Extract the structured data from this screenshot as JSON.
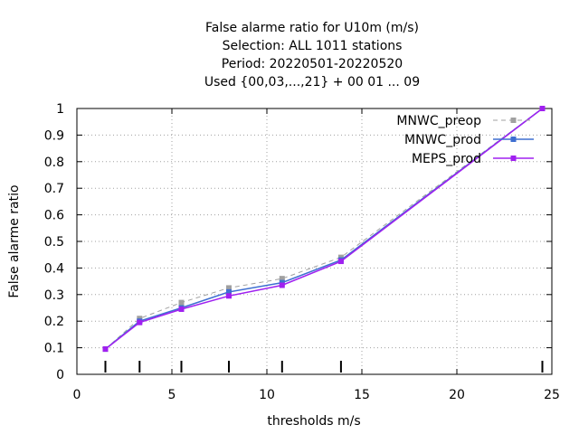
{
  "chart_data": {
    "type": "line",
    "title_lines": [
      "False alarme ratio  for U10m (m/s)",
      "Selection: ALL   1011 stations",
      "Period: 20220501-20220520",
      "Used {00,03,...,21} + 00 01 ... 09"
    ],
    "xlabel": "thresholds m/s",
    "ylabel": "False alarme ratio",
    "xlim": [
      0,
      25
    ],
    "ylim": [
      0,
      1
    ],
    "xticks": [
      0,
      5,
      10,
      15,
      20,
      25
    ],
    "yticks": [
      0,
      0.1,
      0.2,
      0.3,
      0.4,
      0.5,
      0.6,
      0.7,
      0.8,
      0.9,
      1
    ],
    "ytick_labels": [
      "0",
      "0.1",
      "0.2",
      "0.3",
      "0.4",
      "0.5",
      "0.6",
      "0.7",
      "0.8",
      "0.9",
      "1"
    ],
    "grid": true,
    "legend_position": "top-right",
    "threshold_marks": [
      1.5,
      3.3,
      5.5,
      8.0,
      10.8,
      13.9,
      24.5
    ],
    "series": [
      {
        "name": "MNWC_preop",
        "color": "#a0a0a0",
        "dashed": true,
        "x": [
          1.5,
          3.3,
          5.5,
          8.0,
          10.8,
          13.9,
          24.5
        ],
        "y": [
          0.095,
          0.21,
          0.27,
          0.325,
          0.36,
          0.44,
          1.0
        ]
      },
      {
        "name": "MNWC_prod",
        "color": "#3e6fd1",
        "dashed": false,
        "x": [
          1.5,
          3.3,
          5.5,
          8.0,
          10.8,
          13.9,
          24.5
        ],
        "y": [
          0.095,
          0.2,
          0.25,
          0.31,
          0.345,
          0.43,
          1.0
        ]
      },
      {
        "name": "MEPS_prod",
        "color": "#a020f0",
        "dashed": false,
        "x": [
          1.5,
          3.3,
          5.5,
          8.0,
          10.8,
          13.9,
          24.5
        ],
        "y": [
          0.095,
          0.195,
          0.245,
          0.295,
          0.335,
          0.425,
          1.0
        ]
      }
    ]
  }
}
